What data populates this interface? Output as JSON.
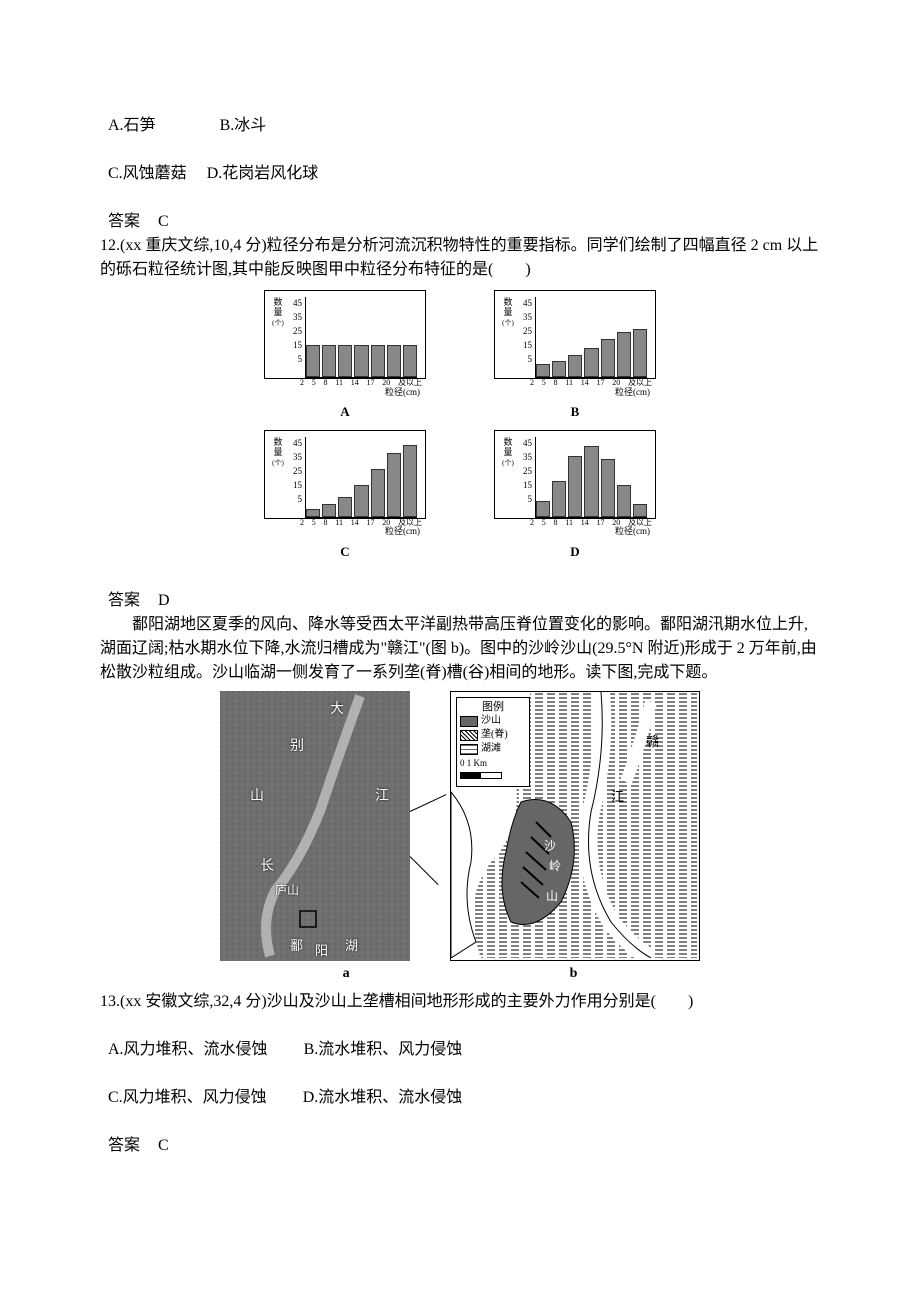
{
  "q11": {
    "optA": "A.石笋",
    "optB": "B.冰斗",
    "optC": "C.风蚀蘑菇",
    "optD": "D.花岗岩风化球",
    "answer_label": "答案",
    "answer_value": "C"
  },
  "q12": {
    "stem": "12.(xx 重庆文综,10,4 分)粒径分布是分析河流沉积物特性的重要指标。同学们绘制了四幅直径 2 cm 以上的砾石粒径统计图,其中能反映图甲中粒径分布特征的是(　　)",
    "answer_label": "答案",
    "answer_value": "D"
  },
  "charts": {
    "ylabel_l1": "数",
    "ylabel_l2": "量",
    "ylabel_l3": "(个)",
    "yticks": [
      "45",
      "35",
      "25",
      "15",
      "5"
    ],
    "xticks": [
      "2",
      "5",
      "8",
      "11",
      "14",
      "17",
      "20",
      "及以上"
    ],
    "xlabel": "粒径(cm)",
    "bar_color": "#888888",
    "bg_color": "#ffffff",
    "A": {
      "letter": "A",
      "values": [
        20,
        20,
        20,
        20,
        20,
        20,
        20
      ]
    },
    "B": {
      "letter": "B",
      "values": [
        8,
        10,
        14,
        18,
        24,
        28,
        30
      ]
    },
    "C": {
      "letter": "C",
      "values": [
        5,
        8,
        12,
        20,
        30,
        40,
        45
      ]
    },
    "D": {
      "letter": "D",
      "values": [
        10,
        22,
        38,
        44,
        36,
        20,
        8
      ]
    }
  },
  "passage": {
    "p1": "　　鄱阳湖地区夏季的风向、降水等受西太平洋副热带高压脊位置变化的影响。鄱阳湖汛期水位上升,湖面辽阔;枯水期水位下降,水流归槽成为\"赣江\"(图 b)。图中的沙岭沙山(29.5°N 附近)形成于 2 万年前,由松散沙粒组成。沙山临湖一侧发育了一系列垄(脊)槽(谷)相间的地形。读下图,完成下题。"
  },
  "map": {
    "a_labels": {
      "dabie1": "大",
      "dabie2": "别",
      "dabie3": "山",
      "yangtze1": "长",
      "yangtze2": "江",
      "lushan": "庐山",
      "poyang1": "鄱",
      "poyang2": "阳",
      "poyang3": "湖"
    },
    "legend": {
      "title": "图例",
      "item1": "沙山",
      "item2": "垄(脊)",
      "item3": "湖滩",
      "scale": "0  1 Km"
    },
    "b_labels": {
      "gan": "赣",
      "jiang": "江",
      "sha": "沙",
      "ling": "岭",
      "shan": "山"
    },
    "sub_a": "a",
    "sub_b": "b"
  },
  "q13": {
    "stem": "13.(xx 安徽文综,32,4 分)沙山及沙山上垄槽相间地形形成的主要外力作用分别是(　　)",
    "optA": "A.风力堆积、流水侵蚀",
    "optB": "B.流水堆积、风力侵蚀",
    "optC": "C.风力堆积、风力侵蚀",
    "optD": "D.流水堆积、流水侵蚀",
    "answer_label": "答案",
    "answer_value": "C"
  }
}
